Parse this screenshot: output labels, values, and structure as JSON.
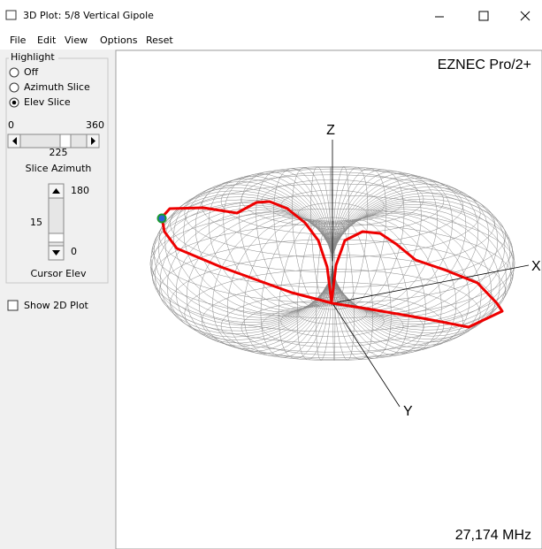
{
  "window": {
    "title": "3D Plot: 5/8 Vertical Gipole"
  },
  "menu": [
    "File",
    "Edit",
    "View",
    "Options",
    "Reset"
  ],
  "highlight": {
    "label": "Highlight",
    "options": [
      "Off",
      "Azimuth Slice",
      "Elev Slice"
    ],
    "selected": "Elev Slice"
  },
  "azimuth_slider": {
    "min_label": "0",
    "max_label": "360",
    "value_label": "225",
    "caption": "Slice Azimuth"
  },
  "elev_slider": {
    "max_label": "180",
    "value_label": "15",
    "min_label": "0",
    "caption": "Cursor Elev"
  },
  "show_2d": {
    "label": "Show 2D Plot"
  },
  "plot": {
    "brand": "EZNEC Pro/2+",
    "frequency": "27,174 MHz",
    "axes": [
      "Z",
      "X",
      "Y"
    ]
  }
}
